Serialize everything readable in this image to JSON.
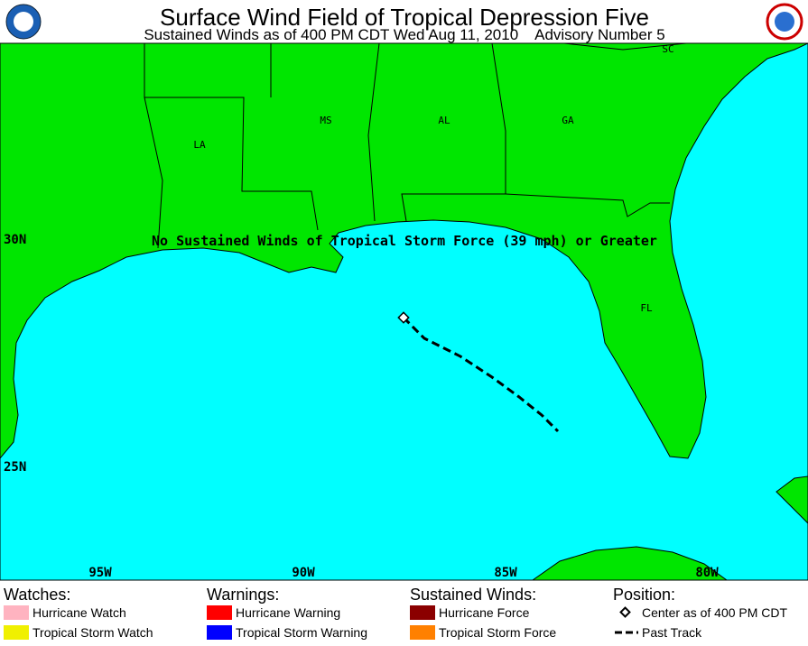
{
  "header": {
    "title": "Surface Wind Field of Tropical Depression Five",
    "subtitle": "Sustained Winds as of 400 PM CDT Wed Aug 11, 2010    Advisory Number 5"
  },
  "map": {
    "states": [
      "SC",
      "LA",
      "MS",
      "AL",
      "GA",
      "FL"
    ],
    "lat_labels": [
      "30N",
      "25N"
    ],
    "lon_labels": [
      "95W",
      "90W",
      "85W",
      "80W"
    ],
    "annotation": "No Sustained Winds of Tropical Storm Force (39 mph) or Greater"
  },
  "legend": [
    {
      "title": "Watches:",
      "items": [
        {
          "label": "Hurricane Watch",
          "color": "#ffb3c0"
        },
        {
          "label": "Tropical Storm Watch",
          "color": "#f0f000"
        }
      ]
    },
    {
      "title": "Warnings:",
      "items": [
        {
          "label": "Hurricane Warning",
          "color": "#ff0000"
        },
        {
          "label": "Tropical Storm Warning",
          "color": "#0000ff"
        }
      ]
    },
    {
      "title": "Sustained Winds:",
      "items": [
        {
          "label": "Hurricane Force",
          "color": "#8b0000"
        },
        {
          "label": "Tropical Storm Force",
          "color": "#ff8000"
        }
      ]
    },
    {
      "title": "Position:",
      "items": [
        {
          "label": "Center as of 400 PM CDT",
          "symbol": "diamond"
        },
        {
          "label": "Past Track",
          "symbol": "dash"
        }
      ]
    }
  ]
}
